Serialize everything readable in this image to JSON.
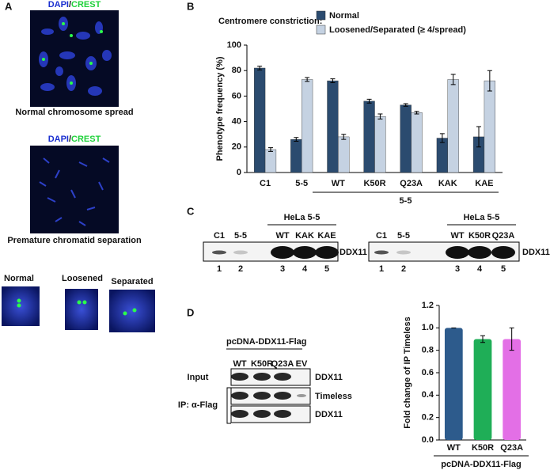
{
  "panel_a": {
    "label": "A",
    "spread_1": {
      "stain": [
        "DAPI",
        "/",
        "CREST"
      ],
      "caption": "Normal chromosome spread"
    },
    "spread_2": {
      "stain": [
        "DAPI",
        "/",
        "CREST"
      ],
      "caption": "Premature chromatid separation"
    },
    "chromosomes": [
      "Normal",
      "Loosened",
      "Separated"
    ]
  },
  "panel_c": {
    "label": "C",
    "blots": [
      {
        "header": "HeLa 5-5",
        "lanes": [
          "C1",
          "5-5",
          "WT",
          "KAK",
          "KAE"
        ],
        "lane_numbers": [
          "1",
          "2",
          "3",
          "4",
          "5"
        ],
        "protein": "DDX11"
      },
      {
        "header": "HeLa 5-5",
        "lanes": [
          "C1",
          "5-5",
          "WT",
          "K50R",
          "Q23A"
        ],
        "lane_numbers": [
          "1",
          "2",
          "3",
          "4",
          "5"
        ],
        "protein": "DDX11"
      }
    ]
  },
  "panel_d_blot": {
    "label": "D",
    "header": "pcDNA-DDX11-Flag",
    "lanes": [
      "WT",
      "K50R",
      "Q23A",
      "EV"
    ],
    "rows": [
      {
        "group": "Input",
        "protein": "DDX11"
      },
      {
        "group": "IP: α-Flag",
        "protein": "Timeless"
      },
      {
        "protein": "DDX11"
      }
    ]
  },
  "chart_data": [
    {
      "type": "bar",
      "label": "B",
      "legend_title": "Centromere constriction:",
      "y_label": "Phenotype frequency (%)",
      "categories": [
        "C1",
        "5-5",
        "WT",
        "K50R",
        "Q23A",
        "KAK",
        "KAE"
      ],
      "group_label": "5-5",
      "series": [
        {
          "name": "Normal",
          "color": "#2b4b6f",
          "values": [
            82,
            26,
            72,
            56,
            53,
            27,
            28
          ],
          "errors": [
            1.5,
            1.5,
            1.5,
            1.5,
            1,
            3.5,
            8
          ]
        },
        {
          "name": "Loosened/Separated (≥ 4/spread)",
          "color": "#c5d2e2",
          "values": [
            18,
            73,
            28,
            44,
            47,
            73,
            72
          ],
          "errors": [
            1.5,
            1.5,
            2,
            2,
            1,
            4,
            8
          ]
        }
      ],
      "ylim": [
        0,
        100
      ],
      "yticks": [
        0,
        20,
        40,
        60,
        80,
        100
      ]
    },
    {
      "type": "bar",
      "y_label": "Fold change of IP Timeless",
      "categories": [
        "WT",
        "K50R",
        "Q23A"
      ],
      "group_label": "pcDNA-DDX11-Flag",
      "values": [
        1.0,
        0.9,
        0.9
      ],
      "errors": [
        0,
        0.03,
        0.1
      ],
      "colors": [
        "#2d5b8c",
        "#1fae57",
        "#e36fe6"
      ],
      "ylim": [
        0,
        1.2
      ],
      "yticks": [
        {
          "value": 0,
          "label": "0.0"
        },
        0.2,
        0.4,
        0.6,
        0.8,
        {
          "value": 1,
          "label": "1.0"
        },
        1.2
      ]
    }
  ]
}
